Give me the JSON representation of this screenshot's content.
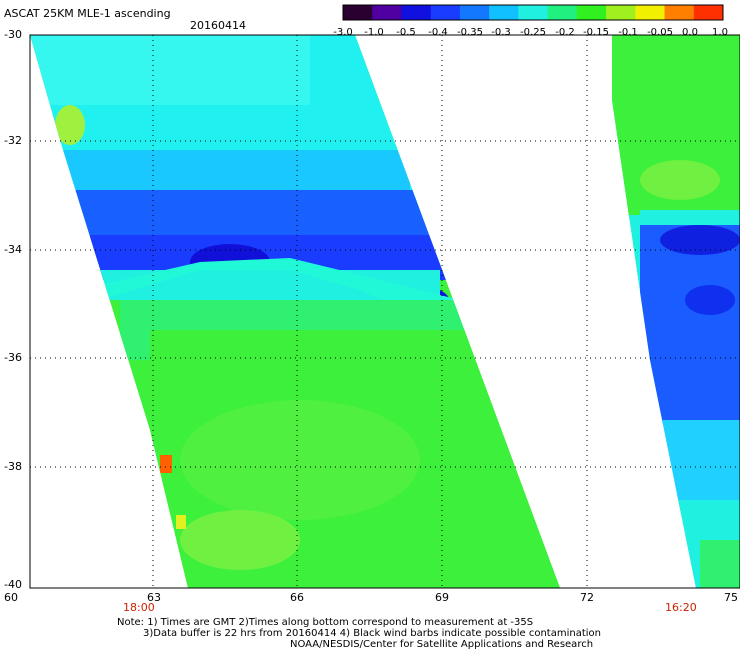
{
  "header": {
    "title": "ASCAT 25KM MLE-1 ascending",
    "date": "20160414"
  },
  "colorbar": {
    "labels": [
      "-3.0",
      "-1.0",
      "-0.5",
      "-0.4",
      "-0.35",
      "-0.3",
      "-0.25",
      "-0.2",
      "-0.15",
      "-0.1",
      "-0.05",
      "0.0",
      "1.0"
    ],
    "colors": [
      "#2a0030",
      "#5000a0",
      "#1010e0",
      "#1a3cff",
      "#1478ff",
      "#10c0ff",
      "#20f0e0",
      "#20f080",
      "#30f020",
      "#a0f020",
      "#f0f000",
      "#ff8000",
      "#ff3000"
    ]
  },
  "axes": {
    "y_labels": [
      "-30",
      "-32",
      "-34",
      "-36",
      "-38",
      "-40"
    ],
    "x_labels": [
      "60",
      "63",
      "66",
      "69",
      "72",
      "75"
    ],
    "time_labels": [
      "18:00",
      "16:20"
    ]
  },
  "notes": [
    "Note: 1) Times are GMT 2)Times along bottom correspond to measurement at -35S",
    "3)Data buffer is 22 hrs from 20160414 4) Black wind barbs indicate possible contamination",
    "NOAA/NESDIS/Center for Satellite Applications and Research"
  ]
}
